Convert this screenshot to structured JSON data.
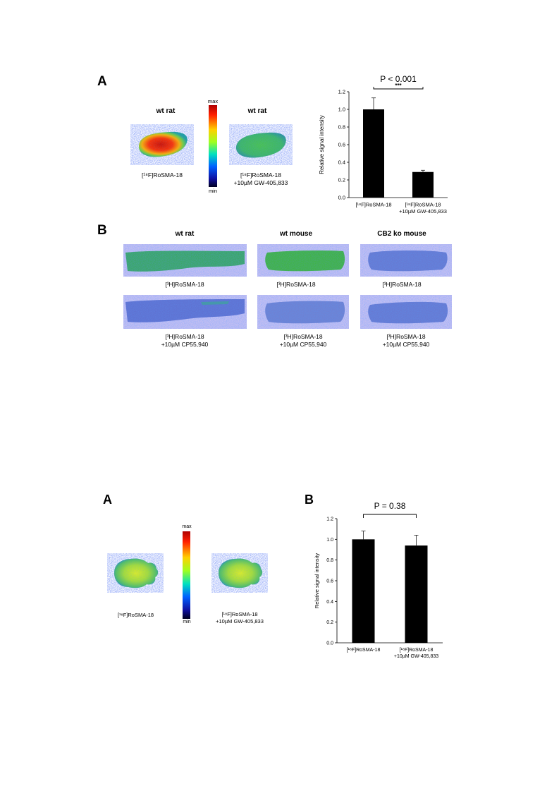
{
  "figure1": {
    "panel_a": {
      "letter": "A",
      "left_title": "wt rat",
      "right_title": "wt rat",
      "scale_max": "max",
      "scale_min": "min",
      "left_caption": "[¹⁸F]RoSMA-18",
      "right_caption_line1": "[¹⁸F]RoSMA-18",
      "right_caption_line2": "+10µM GW-405,833",
      "significance": "P < 0.001",
      "stars": "***"
    },
    "panel_b": {
      "letter": "B",
      "col_titles": [
        "wt rat",
        "wt mouse",
        "CB2 ko mouse"
      ],
      "top_caption": "[³H]RoSMA-18",
      "bottom_caption_line1": "[³H]RoSMA-18",
      "bottom_caption_line2": "+10µM CP55,940"
    }
  },
  "figure2": {
    "panel_a": {
      "letter": "A",
      "scale_max": "max",
      "scale_min": "min",
      "left_caption": "[¹⁸F]RoSMA-18",
      "right_caption_line1": "[¹⁸F]RoSMA-18",
      "right_caption_line2": "+10µM GW-405,833"
    },
    "panel_b": {
      "letter": "B",
      "significance": "P = 0.38"
    }
  },
  "chart_data": [
    {
      "type": "bar",
      "categories": [
        "[¹⁸F]RoSMA-18",
        "[¹⁸F]RoSMA-18 +10µM GW-405,833"
      ],
      "values": [
        1.0,
        0.29
      ],
      "errors": [
        0.13,
        0.02
      ],
      "ylabel": "Relative signal intensity",
      "ylim": [
        0,
        1.2
      ],
      "yticks": [
        "0.0",
        "0.2",
        "0.4",
        "0.6",
        "0.8",
        "1.0",
        "1.2"
      ],
      "significance": "P < 0.001",
      "color": "#000000"
    },
    {
      "type": "bar",
      "categories": [
        "[¹⁸F]RoSMA-18",
        "[¹⁸F]RoSMA-18 +10µM GW-405,833"
      ],
      "values": [
        1.0,
        0.94
      ],
      "errors": [
        0.08,
        0.1
      ],
      "ylabel": "Relative signal intensity",
      "ylim": [
        0,
        1.2
      ],
      "yticks": [
        "0.0",
        "0.2",
        "0.4",
        "0.6",
        "0.8",
        "1.0",
        "1.2"
      ],
      "significance": "P = 0.38",
      "color": "#000000"
    }
  ]
}
